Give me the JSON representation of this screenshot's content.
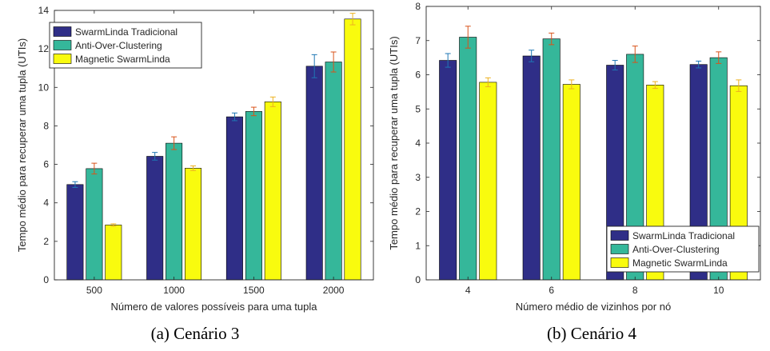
{
  "captions": {
    "a": "(a)  Cenário 3",
    "b": "(b)  Cenário 4"
  },
  "colors": {
    "series": [
      "#2f2e87",
      "#35b79a",
      "#f9fb0e"
    ],
    "error_bars": [
      "#1f77b4",
      "#d9531a",
      "#edb120"
    ],
    "axis": "#262626"
  },
  "chart_data": [
    {
      "type": "bar",
      "categories": [
        "500",
        "1000",
        "1500",
        "2000"
      ],
      "xlabel": "Número de valores possíveis para uma tupla",
      "ylabel": "Tempo médio para recuperar uma tupla (UTIs)",
      "ylim": [
        0,
        14
      ],
      "yticks": [
        0,
        2,
        4,
        6,
        8,
        10,
        12,
        14
      ],
      "grid": false,
      "legend_position": "top-left",
      "series": [
        {
          "name": "SwarmLinda Tradicional",
          "values": [
            4.95,
            6.42,
            8.47,
            11.1
          ],
          "errors": [
            0.15,
            0.2,
            0.2,
            0.6
          ]
        },
        {
          "name": "Anti-Over-Clustering",
          "values": [
            5.78,
            7.1,
            8.75,
            11.32
          ],
          "errors": [
            0.28,
            0.33,
            0.22,
            0.52
          ]
        },
        {
          "name": "Magnetic SwarmLinda",
          "values": [
            2.85,
            5.8,
            9.25,
            13.55
          ],
          "errors": [
            0.06,
            0.12,
            0.25,
            0.3
          ]
        }
      ]
    },
    {
      "type": "bar",
      "categories": [
        "4",
        "6",
        "8",
        "10"
      ],
      "xlabel": "Número médio de vizinhos por nó",
      "ylabel": "Tempo médio para recuperar uma tupla (UTIs)",
      "ylim": [
        0,
        8
      ],
      "yticks": [
        0,
        1,
        2,
        3,
        4,
        5,
        6,
        7,
        8
      ],
      "grid": false,
      "legend_position": "bottom-right",
      "series": [
        {
          "name": "SwarmLinda Tradicional",
          "values": [
            6.42,
            6.55,
            6.28,
            6.3
          ],
          "errors": [
            0.2,
            0.17,
            0.14,
            0.1
          ]
        },
        {
          "name": "Anti-Over-Clustering",
          "values": [
            7.1,
            7.05,
            6.6,
            6.5
          ],
          "errors": [
            0.32,
            0.17,
            0.24,
            0.17
          ]
        },
        {
          "name": "Magnetic SwarmLinda",
          "values": [
            5.78,
            5.72,
            5.7,
            5.68
          ],
          "errors": [
            0.13,
            0.13,
            0.1,
            0.17
          ]
        }
      ]
    }
  ]
}
